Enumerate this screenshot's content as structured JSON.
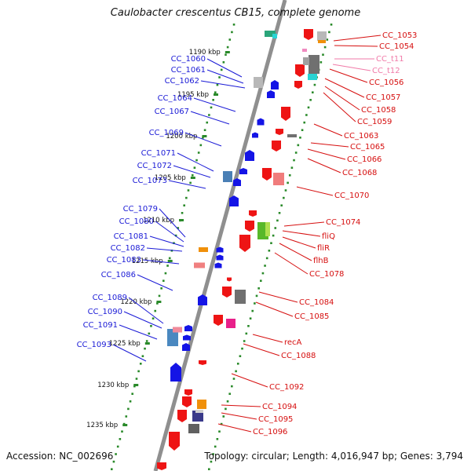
{
  "title": "Caulobacter crescentus CB15, complete genome",
  "footer": {
    "accession": "Accession: NC_002696",
    "summary": "Topology: circular; Length: 4,016,947 bp; Genes: 3,794"
  },
  "colors": {
    "backbone": "#8f8f8f",
    "scale_dots": "#2a8a2a",
    "left_labels": "#1a1ad6",
    "right_labels": "#d60f0f",
    "trna_labels": "#f07aa8"
  },
  "scale_ticks": [
    "1190 kbp",
    "1195 kbp",
    "1200 kbp",
    "1205 kbp",
    "1210 kbp",
    "1215 kbp",
    "1220 kbp",
    "1225 kbp",
    "1230 kbp",
    "1235 kbp"
  ],
  "left_labels": [
    "CC_1060",
    "CC_1061",
    "CC_1062",
    "CC_1064",
    "CC_1067",
    "CC_1069",
    "CC_1071",
    "CC_1072",
    "CC_1073",
    "CC_1079",
    "CC_1080",
    "CC_1081",
    "CC_1082",
    "CC_1083",
    "CC_1086",
    "CC_1089",
    "CC_1090",
    "CC_1091",
    "CC_1093"
  ],
  "right_labels": [
    "CC_1053",
    "CC_1054",
    "CC_t11",
    "CC_t12",
    "CC_1056",
    "CC_1057",
    "CC_1058",
    "CC_1059",
    "CC_1063",
    "CC_1065",
    "CC_1066",
    "CC_1068",
    "CC_1070",
    "CC_1074",
    "fliQ",
    "fliR",
    "flhB",
    "CC_1078",
    "CC_1084",
    "CC_1085",
    "recA",
    "CC_1088",
    "CC_1092",
    "CC_1094",
    "CC_1095",
    "CC_1096"
  ],
  "trna_labels": [
    "CC_t11",
    "CC_t12"
  ]
}
